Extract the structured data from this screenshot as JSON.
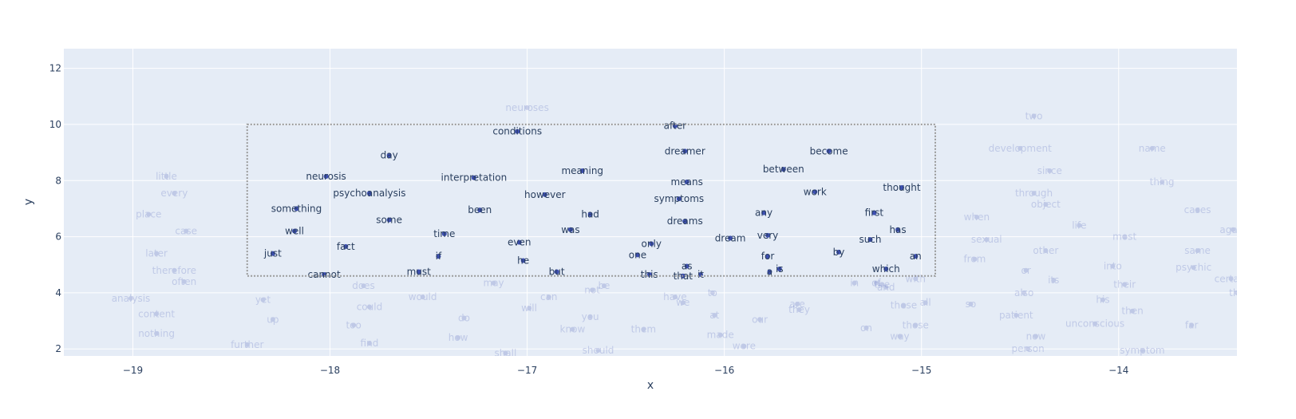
{
  "chart_data": {
    "type": "scatter",
    "title": "",
    "xlabel": "x",
    "ylabel": "y",
    "xlim": [
      -19.35,
      -13.4
    ],
    "ylim": [
      1.75,
      12.7
    ],
    "x_ticks": [
      -19,
      -18,
      -17,
      -16,
      -15,
      -14
    ],
    "x_tick_labels": [
      "−19",
      "−18",
      "−17",
      "−16",
      "−15",
      "−14"
    ],
    "y_ticks": [
      2,
      4,
      6,
      8,
      10,
      12
    ],
    "y_tick_labels": [
      "2",
      "4",
      "6",
      "8",
      "10",
      "12"
    ],
    "grid": true,
    "selection_box": {
      "x0": -18.42,
      "x1": -14.93,
      "y0": 4.6,
      "y1": 10.0
    },
    "colors": {
      "plot_bg": "#e5ecf6",
      "grid": "#ffffff",
      "marker": "#3d4fb2",
      "selected_text": "#2a3f5f",
      "unselected_opacity": 0.22,
      "selection_border": "#999999"
    },
    "points": [
      {
        "text": "neuroses",
        "x": -17.0,
        "y": 10.6,
        "selected": false
      },
      {
        "text": "conditions",
        "x": -17.05,
        "y": 9.75,
        "selected": true
      },
      {
        "text": "after",
        "x": -16.25,
        "y": 9.95,
        "selected": true
      },
      {
        "text": "day",
        "x": -17.7,
        "y": 8.9,
        "selected": true
      },
      {
        "text": "dreamer",
        "x": -16.2,
        "y": 9.05,
        "selected": true
      },
      {
        "text": "become",
        "x": -15.47,
        "y": 9.05,
        "selected": true
      },
      {
        "text": "meaning",
        "x": -16.72,
        "y": 8.35,
        "selected": true
      },
      {
        "text": "between",
        "x": -15.7,
        "y": 8.4,
        "selected": true
      },
      {
        "text": "neurosis",
        "x": -18.02,
        "y": 8.15,
        "selected": true
      },
      {
        "text": "interpretation",
        "x": -17.27,
        "y": 8.1,
        "selected": true
      },
      {
        "text": "means",
        "x": -16.19,
        "y": 7.95,
        "selected": true
      },
      {
        "text": "thought",
        "x": -15.1,
        "y": 7.75,
        "selected": true
      },
      {
        "text": "psychoanalysis",
        "x": -17.8,
        "y": 7.55,
        "selected": true
      },
      {
        "text": "however",
        "x": -16.91,
        "y": 7.5,
        "selected": true
      },
      {
        "text": "work",
        "x": -15.54,
        "y": 7.6,
        "selected": true
      },
      {
        "text": "symptoms",
        "x": -16.23,
        "y": 7.35,
        "selected": true
      },
      {
        "text": "something",
        "x": -18.17,
        "y": 7.0,
        "selected": true
      },
      {
        "text": "been",
        "x": -17.24,
        "y": 6.95,
        "selected": true
      },
      {
        "text": "had",
        "x": -16.68,
        "y": 6.8,
        "selected": true
      },
      {
        "text": "any",
        "x": -15.8,
        "y": 6.85,
        "selected": true
      },
      {
        "text": "first",
        "x": -15.24,
        "y": 6.85,
        "selected": true
      },
      {
        "text": "some",
        "x": -17.7,
        "y": 6.6,
        "selected": true
      },
      {
        "text": "dreams",
        "x": -16.2,
        "y": 6.55,
        "selected": true
      },
      {
        "text": "has",
        "x": -15.12,
        "y": 6.25,
        "selected": true
      },
      {
        "text": "well",
        "x": -18.18,
        "y": 6.2,
        "selected": true
      },
      {
        "text": "was",
        "x": -16.78,
        "y": 6.25,
        "selected": true
      },
      {
        "text": "time",
        "x": -17.42,
        "y": 6.1,
        "selected": true
      },
      {
        "text": "very",
        "x": -15.78,
        "y": 6.05,
        "selected": true
      },
      {
        "text": "dream",
        "x": -15.97,
        "y": 5.95,
        "selected": true
      },
      {
        "text": "such",
        "x": -15.26,
        "y": 5.9,
        "selected": true
      },
      {
        "text": "even",
        "x": -17.04,
        "y": 5.8,
        "selected": true
      },
      {
        "text": "only",
        "x": -16.37,
        "y": 5.75,
        "selected": true
      },
      {
        "text": "fact",
        "x": -17.92,
        "y": 5.65,
        "selected": true
      },
      {
        "text": "just",
        "x": -18.29,
        "y": 5.4,
        "selected": true
      },
      {
        "text": "one",
        "x": -16.44,
        "y": 5.35,
        "selected": true
      },
      {
        "text": "if",
        "x": -17.45,
        "y": 5.3,
        "selected": true
      },
      {
        "text": "by",
        "x": -15.42,
        "y": 5.45,
        "selected": true
      },
      {
        "text": "for",
        "x": -15.78,
        "y": 5.3,
        "selected": true
      },
      {
        "text": "an",
        "x": -15.03,
        "y": 5.3,
        "selected": true
      },
      {
        "text": "he",
        "x": -17.02,
        "y": 5.15,
        "selected": true
      },
      {
        "text": "as",
        "x": -16.19,
        "y": 4.95,
        "selected": true
      },
      {
        "text": "which",
        "x": -15.18,
        "y": 4.85,
        "selected": true
      },
      {
        "text": "is",
        "x": -15.72,
        "y": 4.85,
        "selected": true
      },
      {
        "text": "a",
        "x": -15.77,
        "y": 4.75,
        "selected": true
      },
      {
        "text": "must",
        "x": -17.55,
        "y": 4.75,
        "selected": true
      },
      {
        "text": "but",
        "x": -16.85,
        "y": 4.75,
        "selected": true
      },
      {
        "text": "cannot",
        "x": -18.03,
        "y": 4.65,
        "selected": true
      },
      {
        "text": "this",
        "x": -16.38,
        "y": 4.65,
        "selected": true
      },
      {
        "text": "that",
        "x": -16.21,
        "y": 4.6,
        "selected": true
      },
      {
        "text": "it",
        "x": -16.12,
        "y": 4.65,
        "selected": true
      },
      {
        "text": "two",
        "x": -14.43,
        "y": 10.3,
        "selected": false
      },
      {
        "text": "development",
        "x": -14.5,
        "y": 9.15,
        "selected": false
      },
      {
        "text": "name",
        "x": -13.83,
        "y": 9.15,
        "selected": false
      },
      {
        "text": "since",
        "x": -14.35,
        "y": 8.35,
        "selected": false
      },
      {
        "text": "thing",
        "x": -13.78,
        "y": 7.95,
        "selected": false
      },
      {
        "text": "through",
        "x": -14.43,
        "y": 7.55,
        "selected": false
      },
      {
        "text": "object",
        "x": -14.37,
        "y": 7.15,
        "selected": false
      },
      {
        "text": "when",
        "x": -14.72,
        "y": 6.7,
        "selected": false
      },
      {
        "text": "cases",
        "x": -13.6,
        "y": 6.95,
        "selected": false
      },
      {
        "text": "life",
        "x": -14.2,
        "y": 6.4,
        "selected": false
      },
      {
        "text": "again",
        "x": -13.42,
        "y": 6.25,
        "selected": false
      },
      {
        "text": "sexual",
        "x": -14.67,
        "y": 5.9,
        "selected": false
      },
      {
        "text": "most",
        "x": -13.97,
        "y": 6.0,
        "selected": false
      },
      {
        "text": "other",
        "x": -14.37,
        "y": 5.5,
        "selected": false
      },
      {
        "text": "same",
        "x": -13.6,
        "y": 5.5,
        "selected": false
      },
      {
        "text": "from",
        "x": -14.73,
        "y": 5.2,
        "selected": false
      },
      {
        "text": "into",
        "x": -14.03,
        "y": 4.95,
        "selected": false
      },
      {
        "text": "psychic",
        "x": -13.62,
        "y": 4.9,
        "selected": false
      },
      {
        "text": "or",
        "x": -14.47,
        "y": 4.8,
        "selected": false
      },
      {
        "text": "its",
        "x": -14.33,
        "y": 4.45,
        "selected": false
      },
      {
        "text": "certain",
        "x": -13.43,
        "y": 4.5,
        "selected": false
      },
      {
        "text": "their",
        "x": -13.97,
        "y": 4.3,
        "selected": false
      },
      {
        "text": "also",
        "x": -14.48,
        "y": 4.0,
        "selected": false
      },
      {
        "text": "his",
        "x": -14.08,
        "y": 3.75,
        "selected": false
      },
      {
        "text": "the",
        "x": -13.4,
        "y": 4.0,
        "selected": false
      },
      {
        "text": "then",
        "x": -13.93,
        "y": 3.35,
        "selected": false
      },
      {
        "text": "so",
        "x": -14.75,
        "y": 3.6,
        "selected": false
      },
      {
        "text": "patient",
        "x": -14.52,
        "y": 3.2,
        "selected": false
      },
      {
        "text": "unconscious",
        "x": -14.12,
        "y": 2.9,
        "selected": false
      },
      {
        "text": "far",
        "x": -13.63,
        "y": 2.85,
        "selected": false
      },
      {
        "text": "now",
        "x": -14.42,
        "y": 2.45,
        "selected": false
      },
      {
        "text": "person",
        "x": -14.46,
        "y": 2.0,
        "selected": false
      },
      {
        "text": "symptom",
        "x": -13.88,
        "y": 1.95,
        "selected": false
      },
      {
        "text": "little",
        "x": -18.83,
        "y": 8.15,
        "selected": false
      },
      {
        "text": "every",
        "x": -18.79,
        "y": 7.55,
        "selected": false
      },
      {
        "text": "place",
        "x": -18.92,
        "y": 6.8,
        "selected": false
      },
      {
        "text": "case",
        "x": -18.73,
        "y": 6.2,
        "selected": false
      },
      {
        "text": "later",
        "x": -18.88,
        "y": 5.4,
        "selected": false
      },
      {
        "text": "therefore",
        "x": -18.79,
        "y": 4.8,
        "selected": false
      },
      {
        "text": "often",
        "x": -18.74,
        "y": 4.4,
        "selected": false
      },
      {
        "text": "analysis",
        "x": -19.01,
        "y": 3.8,
        "selected": false
      },
      {
        "text": "content",
        "x": -18.88,
        "y": 3.25,
        "selected": false
      },
      {
        "text": "nothing",
        "x": -18.88,
        "y": 2.55,
        "selected": false
      },
      {
        "text": "further",
        "x": -18.42,
        "y": 2.15,
        "selected": false
      },
      {
        "text": "does",
        "x": -17.83,
        "y": 4.25,
        "selected": false
      },
      {
        "text": "yet",
        "x": -18.34,
        "y": 3.75,
        "selected": false
      },
      {
        "text": "up",
        "x": -18.29,
        "y": 3.05,
        "selected": false
      },
      {
        "text": "could",
        "x": -17.8,
        "y": 3.5,
        "selected": false
      },
      {
        "text": "would",
        "x": -17.53,
        "y": 3.85,
        "selected": false
      },
      {
        "text": "too",
        "x": -17.88,
        "y": 2.85,
        "selected": false
      },
      {
        "text": "find",
        "x": -17.8,
        "y": 2.2,
        "selected": false
      },
      {
        "text": "may",
        "x": -17.17,
        "y": 4.35,
        "selected": false
      },
      {
        "text": "do",
        "x": -17.32,
        "y": 3.1,
        "selected": false
      },
      {
        "text": "how",
        "x": -17.35,
        "y": 2.4,
        "selected": false
      },
      {
        "text": "will",
        "x": -16.99,
        "y": 3.45,
        "selected": false
      },
      {
        "text": "shall",
        "x": -17.11,
        "y": 1.85,
        "selected": false
      },
      {
        "text": "can",
        "x": -16.89,
        "y": 3.85,
        "selected": false
      },
      {
        "text": "not",
        "x": -16.67,
        "y": 4.1,
        "selected": false
      },
      {
        "text": "be",
        "x": -16.61,
        "y": 4.25,
        "selected": false
      },
      {
        "text": "you",
        "x": -16.68,
        "y": 3.15,
        "selected": false
      },
      {
        "text": "know",
        "x": -16.77,
        "y": 2.7,
        "selected": false
      },
      {
        "text": "should",
        "x": -16.64,
        "y": 1.95,
        "selected": false
      },
      {
        "text": "them",
        "x": -16.41,
        "y": 2.7,
        "selected": false
      },
      {
        "text": "have",
        "x": -16.25,
        "y": 3.85,
        "selected": false
      },
      {
        "text": "we",
        "x": -16.21,
        "y": 3.65,
        "selected": false
      },
      {
        "text": "to",
        "x": -16.06,
        "y": 4.0,
        "selected": false
      },
      {
        "text": "at",
        "x": -16.05,
        "y": 3.2,
        "selected": false
      },
      {
        "text": "made",
        "x": -16.02,
        "y": 2.5,
        "selected": false
      },
      {
        "text": "were",
        "x": -15.9,
        "y": 2.1,
        "selected": false
      },
      {
        "text": "our",
        "x": -15.82,
        "y": 3.05,
        "selected": false
      },
      {
        "text": "are",
        "x": -15.63,
        "y": 3.6,
        "selected": false
      },
      {
        "text": "they",
        "x": -15.62,
        "y": 3.4,
        "selected": false
      },
      {
        "text": "in",
        "x": -15.34,
        "y": 4.35,
        "selected": false
      },
      {
        "text": "of",
        "x": -15.23,
        "y": 4.35,
        "selected": false
      },
      {
        "text": "the",
        "x": -15.2,
        "y": 4.3,
        "selected": false
      },
      {
        "text": "and",
        "x": -15.18,
        "y": 4.2,
        "selected": false
      },
      {
        "text": "with",
        "x": -15.03,
        "y": 4.5,
        "selected": false
      },
      {
        "text": "these",
        "x": -15.09,
        "y": 3.55,
        "selected": false
      },
      {
        "text": "all",
        "x": -14.98,
        "y": 3.65,
        "selected": false
      },
      {
        "text": "on",
        "x": -15.28,
        "y": 2.75,
        "selected": false
      },
      {
        "text": "those",
        "x": -15.03,
        "y": 2.85,
        "selected": false
      },
      {
        "text": "way",
        "x": -15.11,
        "y": 2.45,
        "selected": false
      }
    ]
  }
}
